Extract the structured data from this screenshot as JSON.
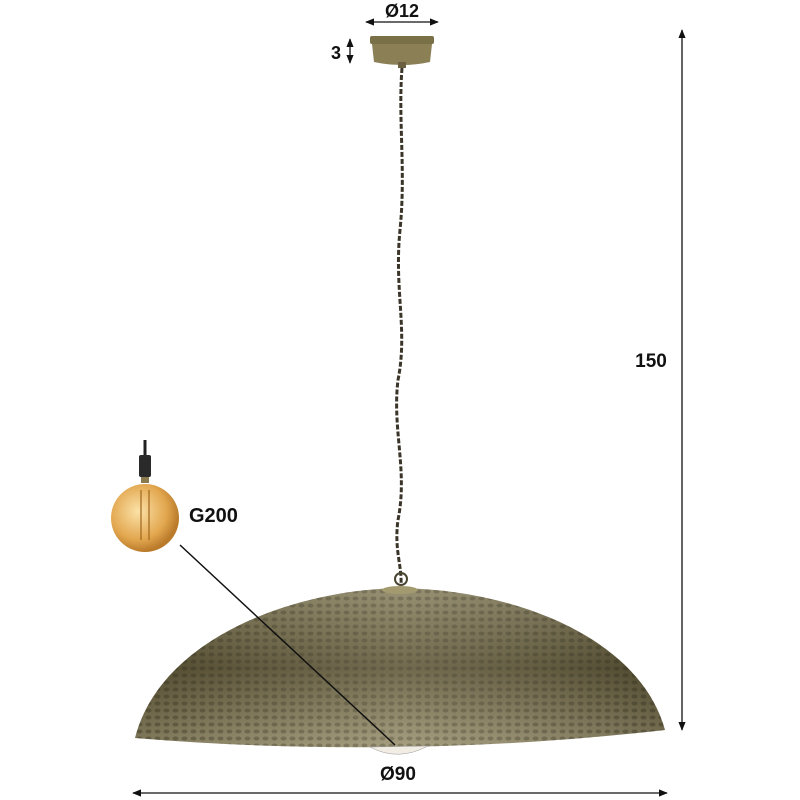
{
  "dimensions": {
    "canopy_diameter": "Ø12",
    "canopy_height": "3",
    "total_height": "150",
    "shade_diameter": "Ø90"
  },
  "bulb": {
    "type_label": "G200"
  },
  "colors": {
    "shade": "#6b6340",
    "canopy": "#8a7f55",
    "bulb_glass": "#e6b25c",
    "dimension_line": "#111111"
  }
}
